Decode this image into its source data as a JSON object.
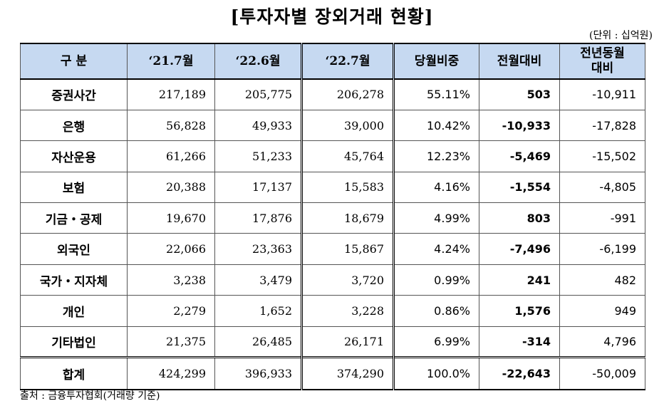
{
  "title": "[투자자별 장외거래 현황]",
  "unit": "(단위 : 십억원)",
  "table": {
    "headers": [
      "구 분",
      "‘21.7월",
      "‘22.6월",
      "‘22.7월",
      "당월비중",
      "전월대비",
      "전년동월\n대비"
    ],
    "rows": [
      {
        "name": "증권사간",
        "c1": "217,189",
        "c2": "205,775",
        "c3": "206,278",
        "share": "55.11%",
        "mom": "503",
        "yoy": "-10,911"
      },
      {
        "name": "은행",
        "c1": "56,828",
        "c2": "49,933",
        "c3": "39,000",
        "share": "10.42%",
        "mom": "-10,933",
        "yoy": "-17,828"
      },
      {
        "name": "자산운용",
        "c1": "61,266",
        "c2": "51,233",
        "c3": "45,764",
        "share": "12.23%",
        "mom": "-5,469",
        "yoy": "-15,502"
      },
      {
        "name": "보험",
        "c1": "20,388",
        "c2": "17,137",
        "c3": "15,583",
        "share": "4.16%",
        "mom": "-1,554",
        "yoy": "-4,805"
      },
      {
        "name": "기금・공제",
        "c1": "19,670",
        "c2": "17,876",
        "c3": "18,679",
        "share": "4.99%",
        "mom": "803",
        "yoy": "-991"
      },
      {
        "name": "외국인",
        "c1": "22,066",
        "c2": "23,363",
        "c3": "15,867",
        "share": "4.24%",
        "mom": "-7,496",
        "yoy": "-6,199"
      },
      {
        "name": "국가・지자체",
        "c1": "3,238",
        "c2": "3,479",
        "c3": "3,720",
        "share": "0.99%",
        "mom": "241",
        "yoy": "482"
      },
      {
        "name": "개인",
        "c1": "2,279",
        "c2": "1,652",
        "c3": "3,228",
        "share": "0.86%",
        "mom": "1,576",
        "yoy": "949"
      },
      {
        "name": "기타법인",
        "c1": "21,375",
        "c2": "26,485",
        "c3": "26,171",
        "share": "6.99%",
        "mom": "-314",
        "yoy": "4,796"
      }
    ],
    "total": {
      "name": "합계",
      "c1": "424,299",
      "c2": "396,933",
      "c3": "374,290",
      "share": "100.0%",
      "mom": "-22,643",
      "yoy": "-50,009"
    }
  },
  "source": "출처 : 금융투자협회(거래량 기준)"
}
